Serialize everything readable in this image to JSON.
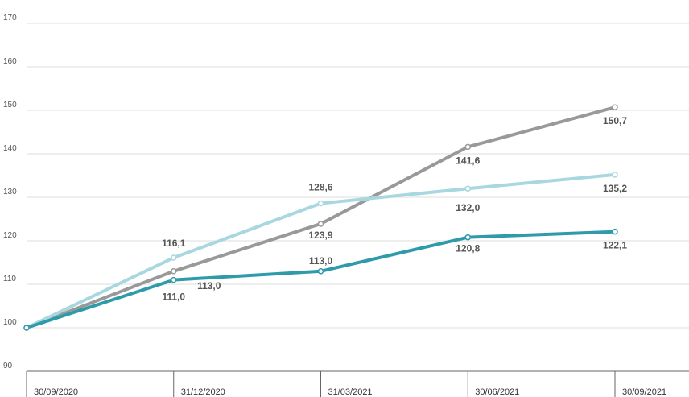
{
  "chart_data": {
    "type": "line",
    "categories": [
      "30/09/2020",
      "31/12/2020",
      "31/03/2021",
      "30/06/2021",
      "30/09/2021"
    ],
    "ylim": [
      90,
      170
    ],
    "yticks": [
      90,
      100,
      110,
      120,
      130,
      140,
      150,
      160,
      170
    ],
    "grid": true,
    "series": [
      {
        "color": "#999999",
        "values": [
          100,
          113.0,
          123.9,
          141.6,
          150.7
        ],
        "labels": [
          "",
          "113,0",
          "123,9",
          "141,6",
          "150,7"
        ]
      },
      {
        "color": "#a8d8df",
        "values": [
          100,
          116.1,
          128.6,
          132.0,
          135.2
        ],
        "labels": [
          "",
          "116,1",
          "128,6",
          "132,0",
          "135,2"
        ]
      },
      {
        "color": "#2e9aaa",
        "values": [
          100,
          111.0,
          113.0,
          120.8,
          122.1
        ],
        "labels": [
          "",
          "111,0",
          "113,0",
          "120,8",
          "122,1"
        ]
      }
    ]
  }
}
